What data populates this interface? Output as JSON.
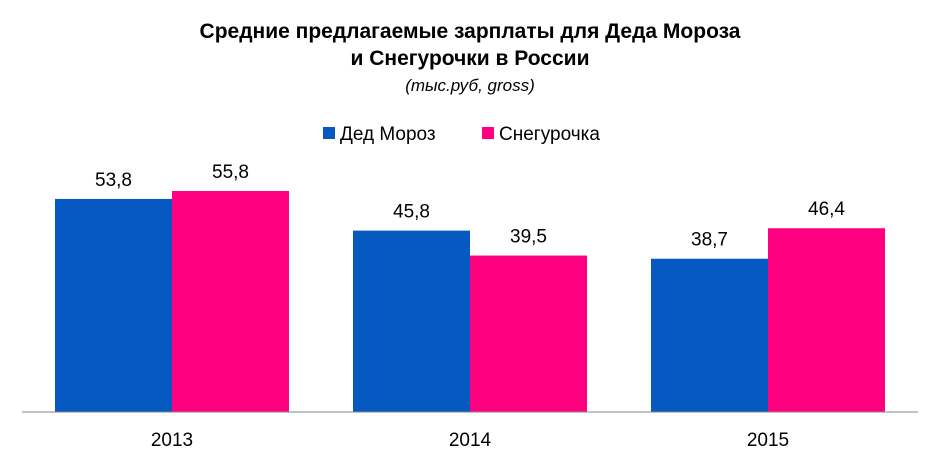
{
  "chart_data": {
    "type": "bar",
    "title_line1": "Средние предлагаемые зарплаты для Деда Мороза",
    "title_line2": "и Снегурочки в России",
    "subtitle": "(тыс.руб, gross)",
    "categories": [
      "2013",
      "2014",
      "2015"
    ],
    "series": [
      {
        "name": "Дед Мороз",
        "color": "#0559C1",
        "values": [
          53.8,
          45.8,
          38.7
        ],
        "labels": [
          "53,8",
          "45,8",
          "38,7"
        ]
      },
      {
        "name": "Снегурочка",
        "color": "#FF0080",
        "values": [
          55.8,
          39.5,
          46.4
        ],
        "labels": [
          "55,8",
          "39,5",
          "46,4"
        ]
      }
    ],
    "ylim": [
      0,
      55.8
    ],
    "grid": false,
    "legend_position": "top-center"
  }
}
